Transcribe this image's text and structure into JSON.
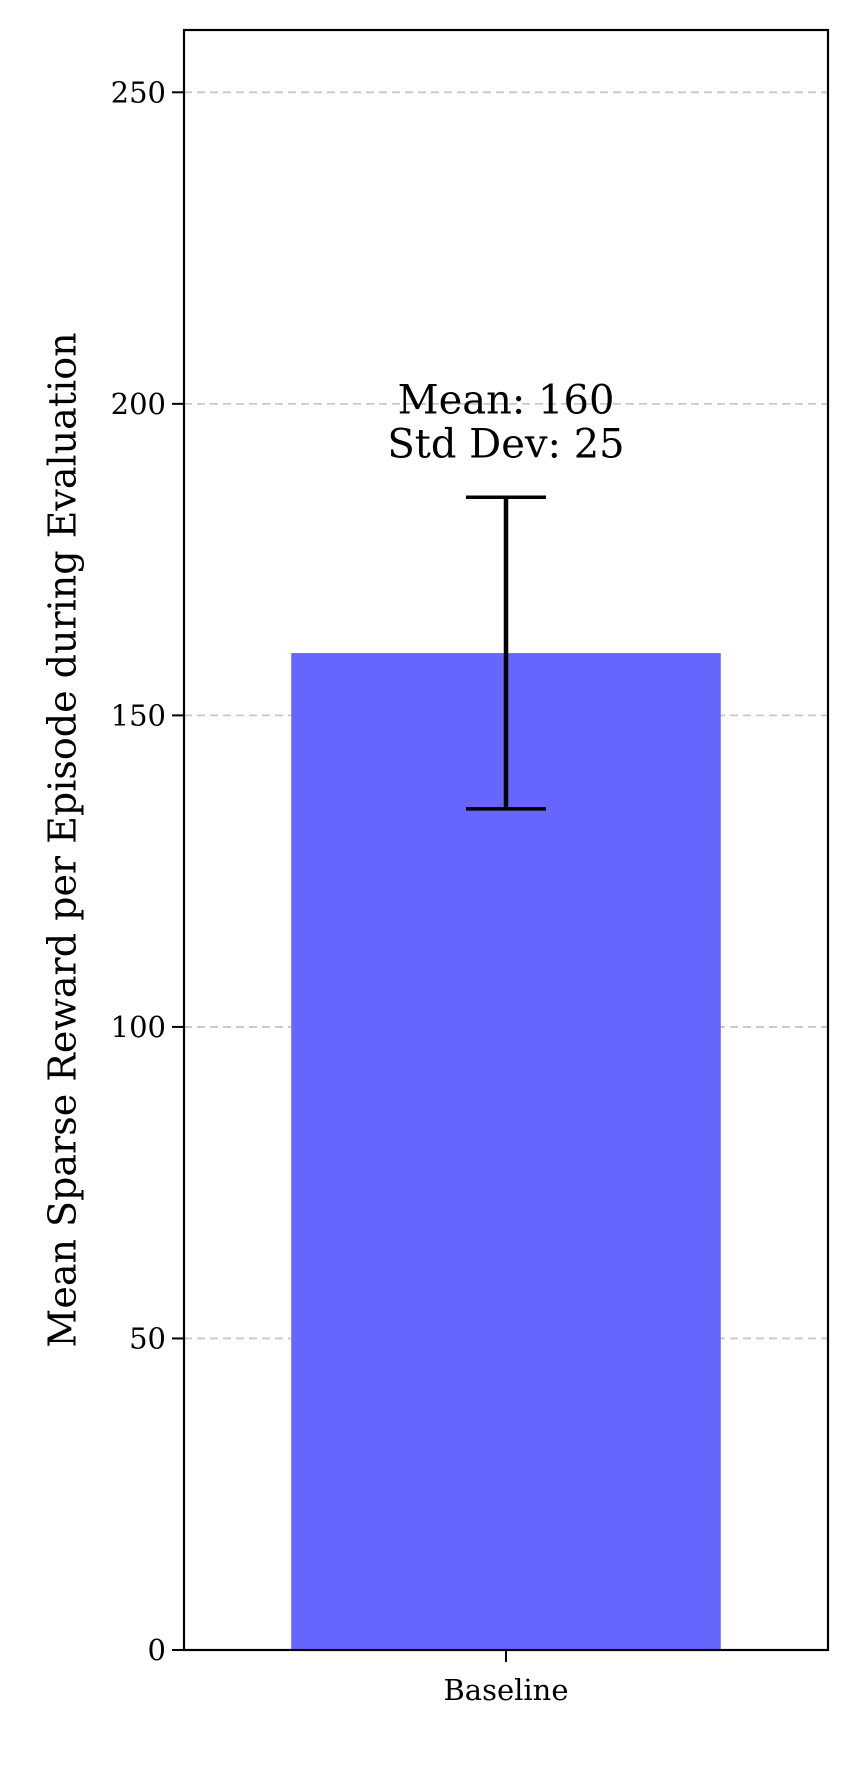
{
  "chart_data": {
    "type": "bar",
    "categories": [
      "Baseline"
    ],
    "values": [
      160
    ],
    "errors": [
      25
    ],
    "title": "",
    "xlabel": "",
    "ylabel": "Mean Sparse Reward per Episode during Evaluation",
    "ylim": [
      0,
      260
    ],
    "yticks": [
      0,
      50,
      100,
      150,
      200,
      250
    ],
    "grid": {
      "axis": "y",
      "style": "dashed",
      "color": "#c8c8c8"
    },
    "bar_color": "#6666ff",
    "annotations": [
      {
        "category": "Baseline",
        "lines": [
          "Mean: 160",
          "Std Dev: 25"
        ]
      }
    ]
  }
}
